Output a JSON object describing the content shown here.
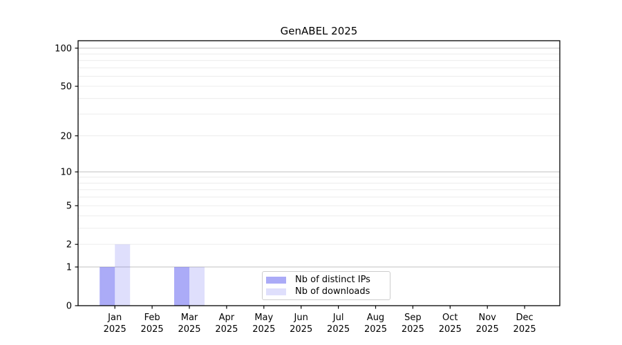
{
  "chart_data": {
    "type": "bar",
    "title": "GenABEL 2025",
    "categories": [
      "Jan 2025",
      "Feb 2025",
      "Mar 2025",
      "Apr 2025",
      "May 2025",
      "Jun 2025",
      "Jul 2025",
      "Aug 2025",
      "Sep 2025",
      "Oct 2025",
      "Nov 2025",
      "Dec 2025"
    ],
    "series": [
      {
        "name": "Nb of distinct IPs",
        "color": "rgba(80,80,238,0.48)",
        "values": [
          1,
          0,
          1,
          0,
          0,
          0,
          0,
          0,
          0,
          0,
          0,
          0
        ]
      },
      {
        "name": "Nb of downloads",
        "color": "rgba(80,80,238,0.18)",
        "values": [
          2,
          0,
          1,
          0,
          0,
          0,
          0,
          0,
          0,
          0,
          0,
          0
        ]
      }
    ],
    "xlabel": "",
    "ylabel": "",
    "y_ticks": [
      0,
      1,
      2,
      5,
      10,
      20,
      50,
      100
    ],
    "y_scale": "log1p",
    "ylim": [
      0,
      115
    ],
    "grid": "horizontal log gridlines, major at 1/10/100",
    "legend_position": "bottom-center-inside",
    "colors": {
      "major_grid": "#c7c7c7",
      "minor_grid": "#ececec",
      "axis": "#000000"
    }
  }
}
